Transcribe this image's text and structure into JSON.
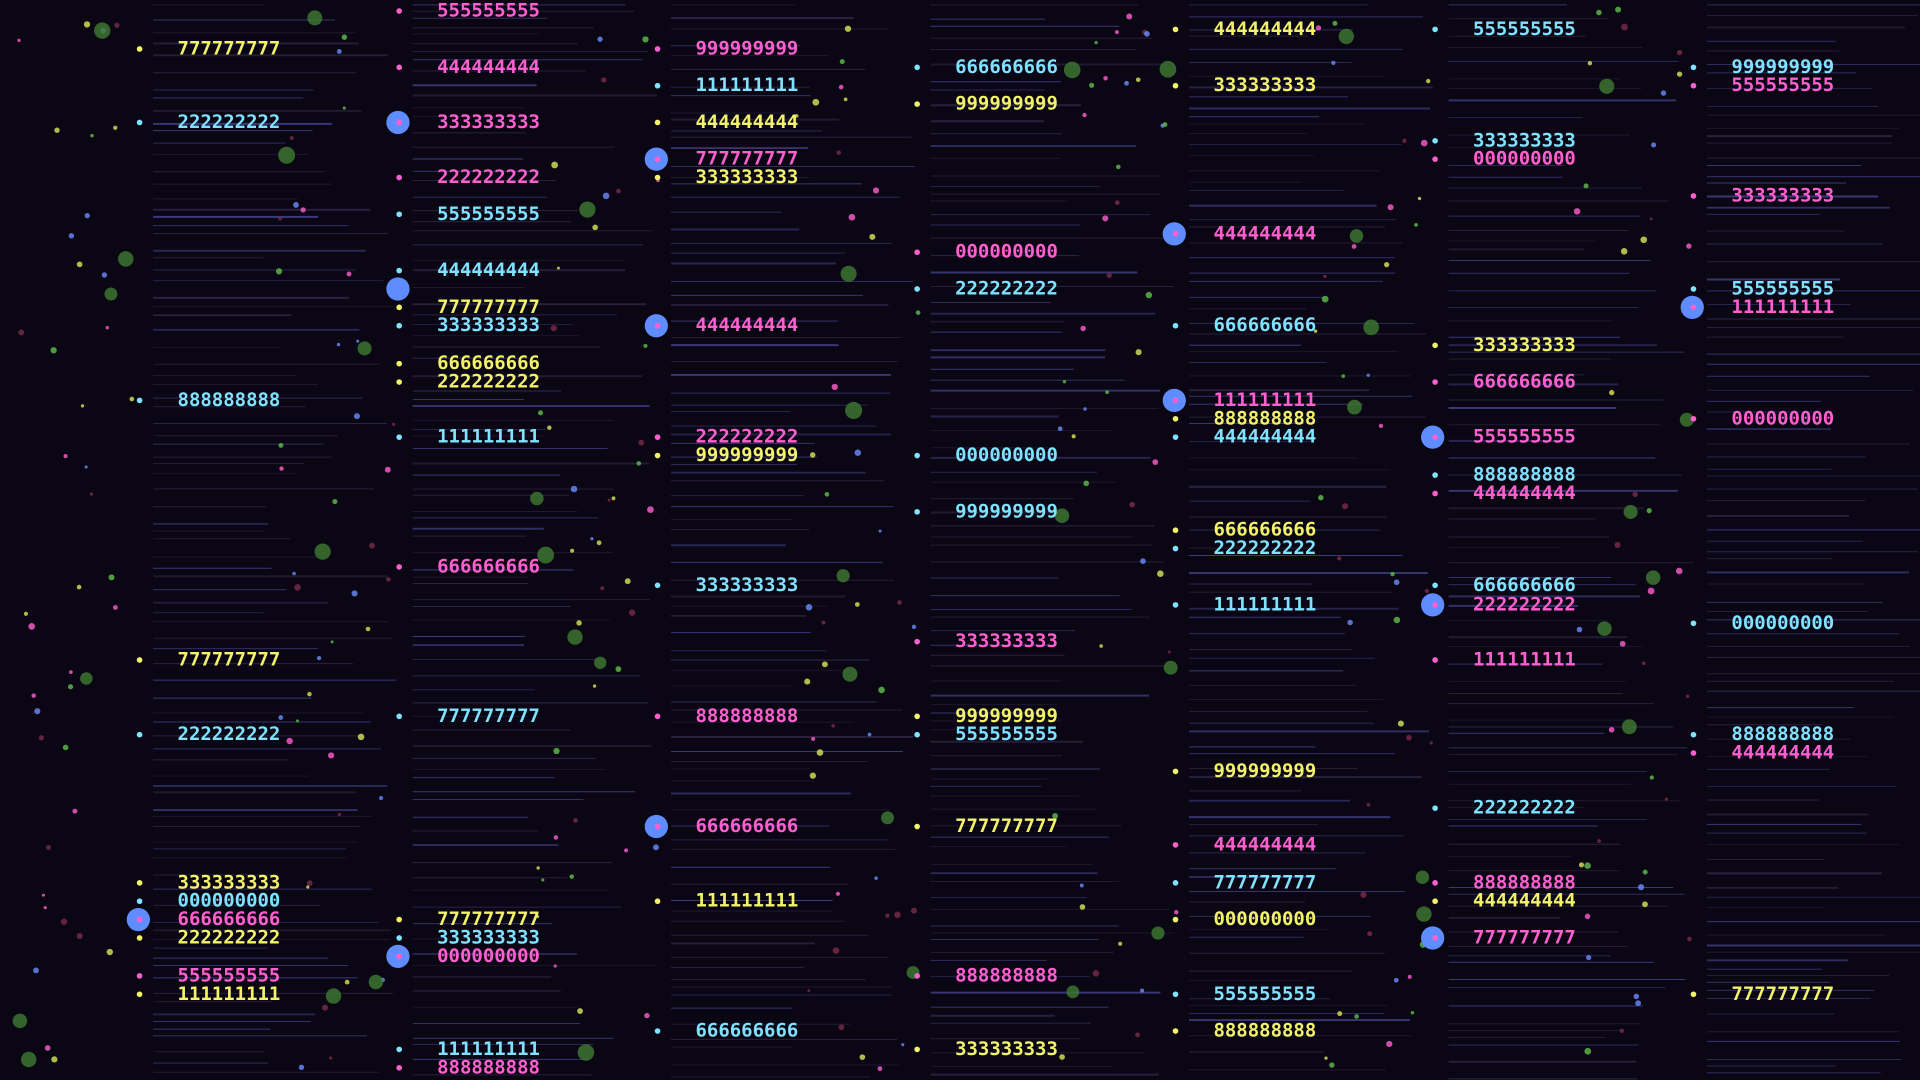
{
  "palette": {
    "cyan": "#7fe3ff",
    "pink": "#ff5fcf",
    "yellow": "#f2f36b"
  },
  "columns": [
    {
      "labels": [
        [
          "777777777",
          "yellow"
        ],
        [
          "222222222",
          "cyan"
        ],
        [
          "888888888",
          "cyan"
        ],
        [
          "777777777",
          "yellow"
        ],
        [
          "222222222",
          "cyan"
        ],
        [
          "333333333",
          "yellow"
        ],
        [
          "000000000",
          "cyan"
        ],
        [
          "666666666",
          "pink"
        ],
        [
          "222222222",
          "yellow"
        ],
        [
          "555555555",
          "pink"
        ],
        [
          "111111111",
          "yellow"
        ]
      ]
    },
    {
      "labels": [
        [
          "555555555",
          "pink"
        ],
        [
          "444444444",
          "pink"
        ],
        [
          "333333333",
          "pink"
        ],
        [
          "222222222",
          "pink"
        ],
        [
          "555555555",
          "cyan"
        ],
        [
          "444444444",
          "cyan"
        ],
        [
          "777777777",
          "yellow"
        ],
        [
          "333333333",
          "cyan"
        ],
        [
          "666666666",
          "yellow"
        ],
        [
          "222222222",
          "yellow"
        ],
        [
          "111111111",
          "cyan"
        ],
        [
          "666666666",
          "pink"
        ],
        [
          "777777777",
          "cyan"
        ],
        [
          "777777777",
          "yellow"
        ],
        [
          "333333333",
          "cyan"
        ],
        [
          "000000000",
          "pink"
        ],
        [
          "111111111",
          "cyan"
        ],
        [
          "888888888",
          "pink"
        ]
      ]
    },
    {
      "labels": [
        [
          "999999999",
          "pink"
        ],
        [
          "111111111",
          "cyan"
        ],
        [
          "444444444",
          "yellow"
        ],
        [
          "777777777",
          "pink"
        ],
        [
          "333333333",
          "yellow"
        ],
        [
          "444444444",
          "pink"
        ],
        [
          "222222222",
          "pink"
        ],
        [
          "999999999",
          "yellow"
        ],
        [
          "333333333",
          "cyan"
        ],
        [
          "888888888",
          "pink"
        ],
        [
          "666666666",
          "pink"
        ],
        [
          "111111111",
          "yellow"
        ],
        [
          "666666666",
          "cyan"
        ]
      ]
    },
    {
      "labels": [
        [
          "666666666",
          "cyan"
        ],
        [
          "999999999",
          "yellow"
        ],
        [
          "000000000",
          "pink"
        ],
        [
          "222222222",
          "cyan"
        ],
        [
          "000000000",
          "cyan"
        ],
        [
          "999999999",
          "cyan"
        ],
        [
          "333333333",
          "pink"
        ],
        [
          "999999999",
          "yellow"
        ],
        [
          "555555555",
          "cyan"
        ],
        [
          "777777777",
          "yellow"
        ],
        [
          "888888888",
          "pink"
        ],
        [
          "333333333",
          "yellow"
        ]
      ]
    },
    {
      "labels": [
        [
          "444444444",
          "yellow"
        ],
        [
          "333333333",
          "yellow"
        ],
        [
          "444444444",
          "pink"
        ],
        [
          "666666666",
          "cyan"
        ],
        [
          "111111111",
          "pink"
        ],
        [
          "888888888",
          "yellow"
        ],
        [
          "444444444",
          "cyan"
        ],
        [
          "666666666",
          "yellow"
        ],
        [
          "222222222",
          "cyan"
        ],
        [
          "111111111",
          "cyan"
        ],
        [
          "999999999",
          "yellow"
        ],
        [
          "444444444",
          "pink"
        ],
        [
          "777777777",
          "cyan"
        ],
        [
          "000000000",
          "yellow"
        ],
        [
          "555555555",
          "cyan"
        ],
        [
          "888888888",
          "yellow"
        ]
      ]
    },
    {
      "labels": [
        [
          "555555555",
          "cyan"
        ],
        [
          "333333333",
          "cyan"
        ],
        [
          "000000000",
          "pink"
        ],
        [
          "333333333",
          "yellow"
        ],
        [
          "666666666",
          "pink"
        ],
        [
          "555555555",
          "pink"
        ],
        [
          "888888888",
          "cyan"
        ],
        [
          "444444444",
          "pink"
        ],
        [
          "666666666",
          "cyan"
        ],
        [
          "222222222",
          "pink"
        ],
        [
          "111111111",
          "pink"
        ],
        [
          "222222222",
          "cyan"
        ],
        [
          "888888888",
          "pink"
        ],
        [
          "444444444",
          "yellow"
        ],
        [
          "777777777",
          "pink"
        ]
      ]
    },
    {
      "labels": [
        [
          "999999999",
          "cyan"
        ],
        [
          "555555555",
          "pink"
        ],
        [
          "333333333",
          "pink"
        ],
        [
          "555555555",
          "cyan"
        ],
        [
          "111111111",
          "pink"
        ],
        [
          "000000000",
          "pink"
        ],
        [
          "000000000",
          "cyan"
        ],
        [
          "888888888",
          "cyan"
        ],
        [
          "444444444",
          "pink"
        ],
        [
          "777777777",
          "yellow"
        ]
      ]
    }
  ]
}
